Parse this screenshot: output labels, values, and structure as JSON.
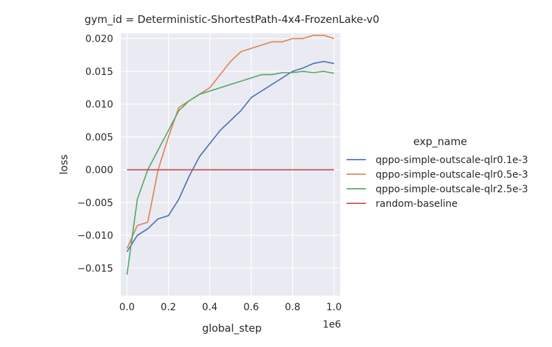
{
  "chart_data": {
    "type": "line",
    "title": "gym_id = Deterministic-ShortestPath-4x4-FrozenLake-v0",
    "xlabel": "global_step",
    "ylabel": "loss",
    "x_offset_label": "1e6",
    "xlim": [
      -0.03,
      1.03
    ],
    "ylim": [
      -0.0192,
      0.0208
    ],
    "x_ticks": [
      "0.0",
      "0.2",
      "0.4",
      "0.6",
      "0.8",
      "1.0"
    ],
    "y_ticks": [
      "−0.015",
      "−0.010",
      "−0.005",
      "0.000",
      "0.005",
      "0.010",
      "0.015",
      "0.020"
    ],
    "grid": true,
    "legend": {
      "title": "exp_name",
      "placement": "right"
    },
    "series": [
      {
        "name": "qppo-simple-outscale-qlr0.1e-3",
        "color": "#4c72b0",
        "x": [
          0.0,
          0.05,
          0.1,
          0.15,
          0.2,
          0.25,
          0.3,
          0.35,
          0.4,
          0.45,
          0.5,
          0.55,
          0.6,
          0.65,
          0.7,
          0.75,
          0.8,
          0.85,
          0.9,
          0.95,
          1.0
        ],
        "y": [
          -0.0125,
          -0.01,
          -0.009,
          -0.0075,
          -0.007,
          -0.0045,
          -0.001,
          0.002,
          0.004,
          0.006,
          0.0075,
          0.009,
          0.011,
          0.012,
          0.013,
          0.014,
          0.015,
          0.0155,
          0.0162,
          0.0165,
          0.0162
        ]
      },
      {
        "name": "qppo-simple-outscale-qlr0.5e-3",
        "color": "#dd8452",
        "x": [
          0.0,
          0.05,
          0.1,
          0.15,
          0.2,
          0.25,
          0.3,
          0.35,
          0.4,
          0.45,
          0.5,
          0.55,
          0.6,
          0.65,
          0.7,
          0.75,
          0.8,
          0.85,
          0.9,
          0.95,
          1.0
        ],
        "y": [
          -0.012,
          -0.0085,
          -0.008,
          0.0,
          0.005,
          0.0095,
          0.0105,
          0.0115,
          0.0125,
          0.0145,
          0.0165,
          0.018,
          0.0185,
          0.019,
          0.0195,
          0.0195,
          0.02,
          0.02,
          0.0205,
          0.0205,
          0.02
        ]
      },
      {
        "name": "qppo-simple-outscale-qlr2.5e-3",
        "color": "#55a868",
        "x": [
          0.0,
          0.05,
          0.1,
          0.15,
          0.2,
          0.25,
          0.3,
          0.35,
          0.4,
          0.45,
          0.5,
          0.55,
          0.6,
          0.65,
          0.7,
          0.75,
          0.8,
          0.85,
          0.9,
          0.95,
          1.0
        ],
        "y": [
          -0.016,
          -0.0045,
          0.0,
          0.003,
          0.006,
          0.009,
          0.0105,
          0.0115,
          0.012,
          0.0125,
          0.013,
          0.0135,
          0.014,
          0.0145,
          0.0145,
          0.0148,
          0.0148,
          0.015,
          0.0148,
          0.015,
          0.0147
        ]
      },
      {
        "name": "random-baseline",
        "color": "#c44e52",
        "x": [
          0.0,
          1.0
        ],
        "y": [
          0.0,
          0.0
        ]
      }
    ]
  }
}
